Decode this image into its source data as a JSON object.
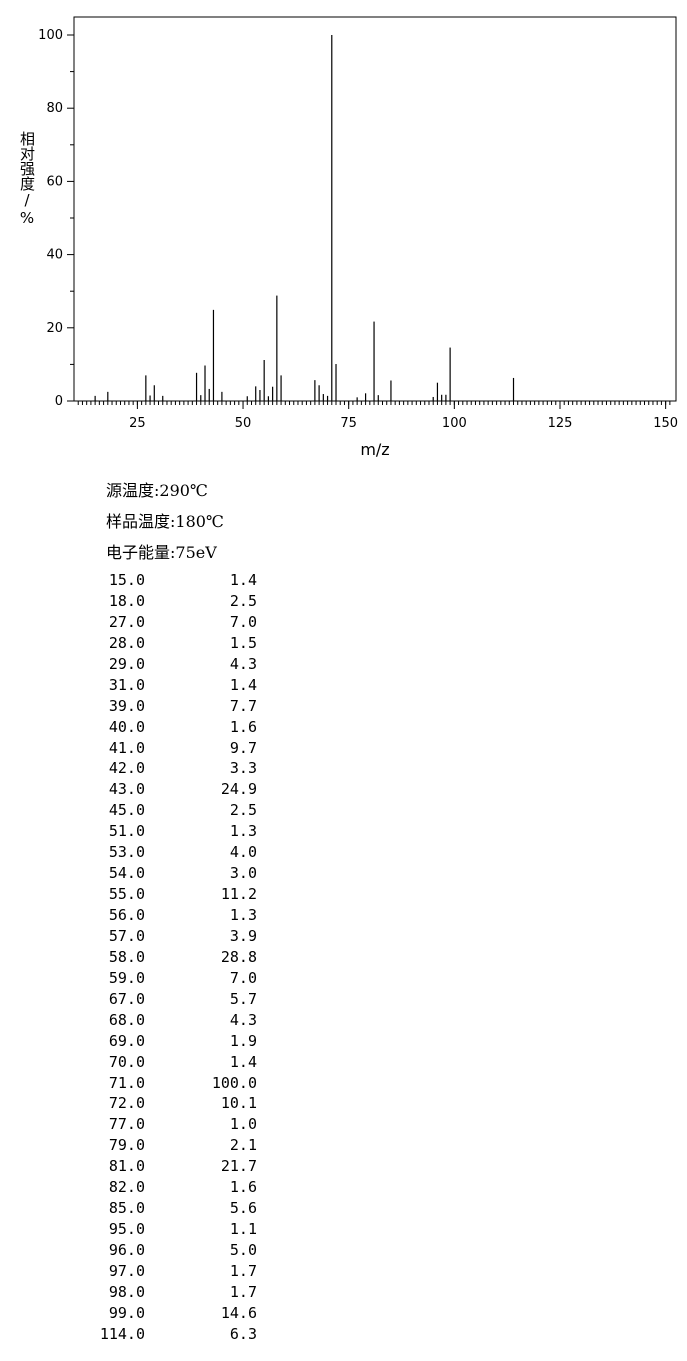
{
  "chart_data": {
    "type": "bar",
    "xlabel": "m/z",
    "ylabel": "相对强度/%",
    "xlim": [
      10,
      152
    ],
    "ylim": [
      0,
      105
    ],
    "xticks": [
      25,
      50,
      75,
      100,
      125,
      150
    ],
    "yticks": [
      0,
      20,
      40,
      60,
      80,
      100
    ],
    "grid": false,
    "series": [
      {
        "x": [
          15.0,
          18.0,
          27.0,
          28.0,
          29.0,
          31.0,
          39.0,
          40.0,
          41.0,
          42.0,
          43.0,
          45.0,
          51.0,
          53.0,
          54.0,
          55.0,
          56.0,
          57.0,
          58.0,
          59.0,
          67.0,
          68.0,
          69.0,
          70.0,
          71.0,
          72.0,
          77.0,
          79.0,
          81.0,
          82.0,
          85.0,
          95.0,
          96.0,
          97.0,
          98.0,
          99.0,
          114.0
        ],
        "values": [
          1.4,
          2.5,
          7.0,
          1.5,
          4.3,
          1.4,
          7.7,
          1.6,
          9.7,
          3.3,
          24.9,
          2.5,
          1.3,
          4.0,
          3.0,
          11.2,
          1.3,
          3.9,
          28.8,
          7.0,
          5.7,
          4.3,
          1.9,
          1.4,
          100.0,
          10.1,
          1.0,
          2.1,
          21.7,
          1.6,
          5.6,
          1.1,
          5.0,
          1.7,
          1.7,
          14.6,
          6.3
        ]
      }
    ]
  },
  "conditions": {
    "source_temp": "源温度:290℃",
    "sample_temp": "样品温度:180℃",
    "electron_energy": "电子能量:75eV"
  },
  "peak_table": [
    {
      "mz": "15.0",
      "intensity": "1.4"
    },
    {
      "mz": "18.0",
      "intensity": "2.5"
    },
    {
      "mz": "27.0",
      "intensity": "7.0"
    },
    {
      "mz": "28.0",
      "intensity": "1.5"
    },
    {
      "mz": "29.0",
      "intensity": "4.3"
    },
    {
      "mz": "31.0",
      "intensity": "1.4"
    },
    {
      "mz": "39.0",
      "intensity": "7.7"
    },
    {
      "mz": "40.0",
      "intensity": "1.6"
    },
    {
      "mz": "41.0",
      "intensity": "9.7"
    },
    {
      "mz": "42.0",
      "intensity": "3.3"
    },
    {
      "mz": "43.0",
      "intensity": "24.9"
    },
    {
      "mz": "45.0",
      "intensity": "2.5"
    },
    {
      "mz": "51.0",
      "intensity": "1.3"
    },
    {
      "mz": "53.0",
      "intensity": "4.0"
    },
    {
      "mz": "54.0",
      "intensity": "3.0"
    },
    {
      "mz": "55.0",
      "intensity": "11.2"
    },
    {
      "mz": "56.0",
      "intensity": "1.3"
    },
    {
      "mz": "57.0",
      "intensity": "3.9"
    },
    {
      "mz": "58.0",
      "intensity": "28.8"
    },
    {
      "mz": "59.0",
      "intensity": "7.0"
    },
    {
      "mz": "67.0",
      "intensity": "5.7"
    },
    {
      "mz": "68.0",
      "intensity": "4.3"
    },
    {
      "mz": "69.0",
      "intensity": "1.9"
    },
    {
      "mz": "70.0",
      "intensity": "1.4"
    },
    {
      "mz": "71.0",
      "intensity": "100.0"
    },
    {
      "mz": "72.0",
      "intensity": "10.1"
    },
    {
      "mz": "77.0",
      "intensity": "1.0"
    },
    {
      "mz": "79.0",
      "intensity": "2.1"
    },
    {
      "mz": "81.0",
      "intensity": "21.7"
    },
    {
      "mz": "82.0",
      "intensity": "1.6"
    },
    {
      "mz": "85.0",
      "intensity": "5.6"
    },
    {
      "mz": "95.0",
      "intensity": "1.1"
    },
    {
      "mz": "96.0",
      "intensity": "5.0"
    },
    {
      "mz": "97.0",
      "intensity": "1.7"
    },
    {
      "mz": "98.0",
      "intensity": "1.7"
    },
    {
      "mz": "99.0",
      "intensity": "14.6"
    },
    {
      "mz": "114.0",
      "intensity": "6.3"
    }
  ]
}
